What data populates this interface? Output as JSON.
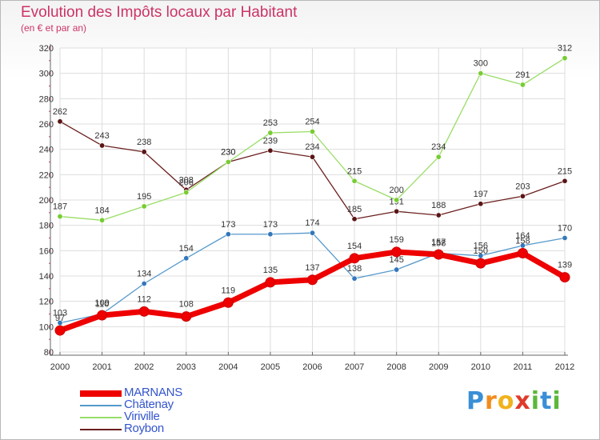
{
  "header": {
    "title": "Evolution des Impôts locaux par Habitant",
    "subtitle": "(en € et par an)"
  },
  "logo": {
    "text": "Proxiti",
    "letters": [
      {
        "ch": "P",
        "color": "#3a8fd6"
      },
      {
        "ch": "r",
        "color": "#f28c1c"
      },
      {
        "ch": "o",
        "color": "#f2b21c"
      },
      {
        "ch": "x",
        "color": "#e03a2a"
      },
      {
        "ch": "i",
        "color": "#5cb83a"
      },
      {
        "ch": "t",
        "color": "#3a8fd6"
      },
      {
        "ch": "i",
        "color": "#5cb83a"
      }
    ]
  },
  "chart_data": {
    "type": "line",
    "title": "Evolution des Impôts locaux par Habitant",
    "subtitle": "(en € et par an)",
    "x": [
      "2000",
      "2001",
      "2002",
      "2003",
      "2004",
      "2005",
      "2006",
      "2007",
      "2008",
      "2009",
      "2010",
      "2011",
      "2012"
    ],
    "ylim": [
      80,
      320
    ],
    "yticks": [
      80,
      100,
      120,
      140,
      160,
      180,
      200,
      220,
      240,
      260,
      280,
      300,
      320
    ],
    "grid": true,
    "legend_position": "bottom-left",
    "series": [
      {
        "name": "Roybon",
        "color": "#6b1f1f",
        "marker": "#5a1515",
        "values": [
          262,
          243,
          238,
          208,
          230,
          239,
          234,
          185,
          191,
          188,
          197,
          203,
          215
        ]
      },
      {
        "name": "Viriville",
        "color": "#99dd66",
        "marker": "#77cc33",
        "values": [
          187,
          184,
          195,
          206,
          230,
          253,
          254,
          215,
          200,
          234,
          300,
          291,
          312
        ]
      },
      {
        "name": "Châtenay",
        "color": "#5599cc",
        "marker": "#3377bb",
        "values": [
          103,
          110,
          134,
          154,
          173,
          173,
          174,
          138,
          145,
          158,
          156,
          164,
          170
        ]
      },
      {
        "name": "MARNANS",
        "color": "#ee0000",
        "marker": "#ee0000",
        "values": [
          97,
          109,
          112,
          108,
          119,
          135,
          137,
          154,
          159,
          157,
          150,
          158,
          139
        ]
      }
    ]
  }
}
